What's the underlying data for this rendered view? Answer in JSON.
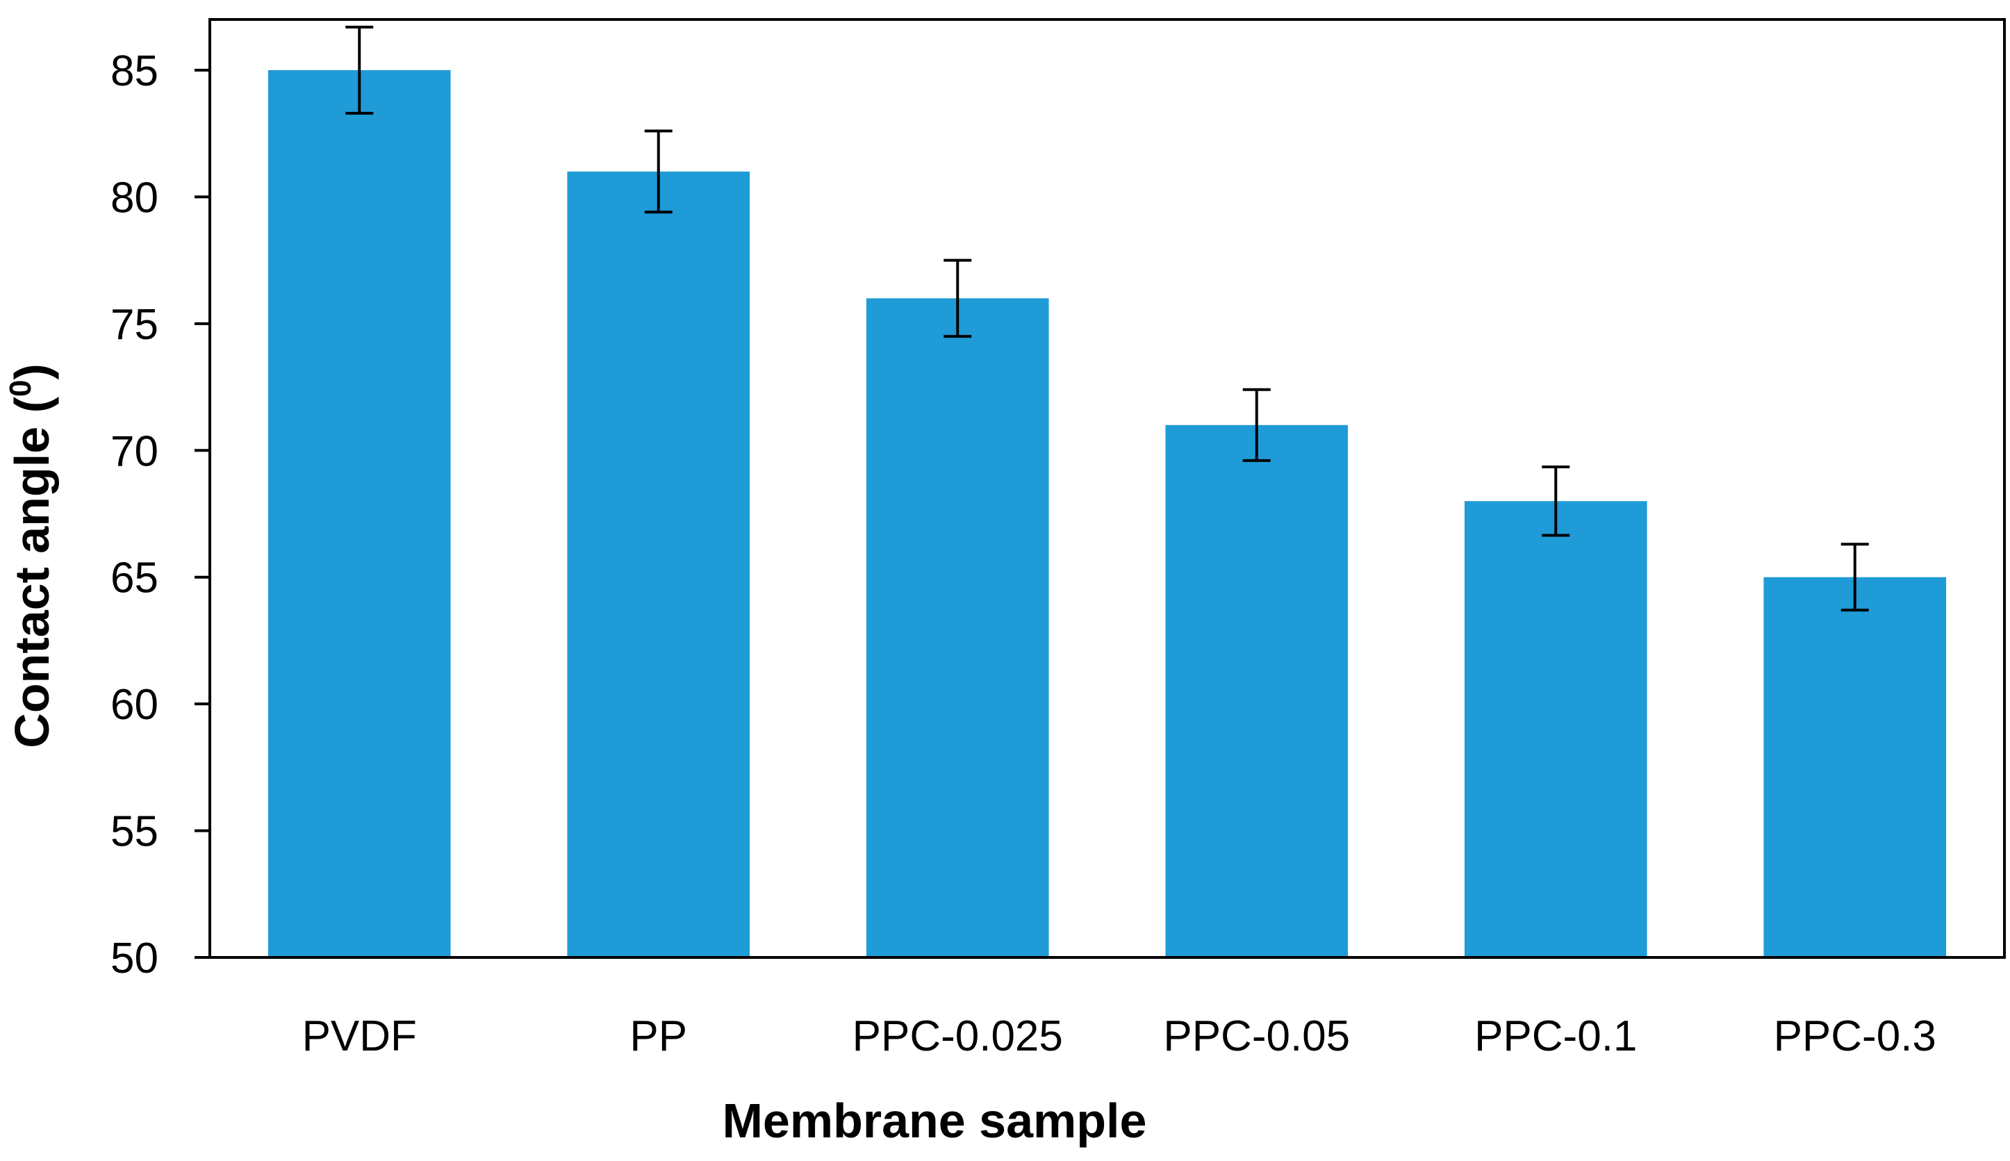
{
  "chart_data": {
    "type": "bar",
    "title": "",
    "categories": [
      "PVDF",
      "PP",
      "PPC-0.025",
      "PPC-0.05",
      "PPC-0.1",
      "PPC-0.3"
    ],
    "values": [
      85,
      81,
      76,
      71,
      68,
      65
    ],
    "error": [
      1.7,
      1.6,
      1.5,
      1.4,
      1.35,
      1.3
    ],
    "xlabel": "Membrane sample",
    "ylabel": {
      "prefix": "Contact angle (",
      "superscript": "0",
      "suffix": ")"
    },
    "ylim": [
      50,
      87
    ],
    "yticks": [
      50,
      55,
      60,
      65,
      70,
      75,
      80,
      85
    ],
    "grid": false,
    "legend": "none",
    "colors": {
      "bar": "#1f9bd7",
      "axis": "#000000",
      "error_bar": "#000000"
    }
  }
}
